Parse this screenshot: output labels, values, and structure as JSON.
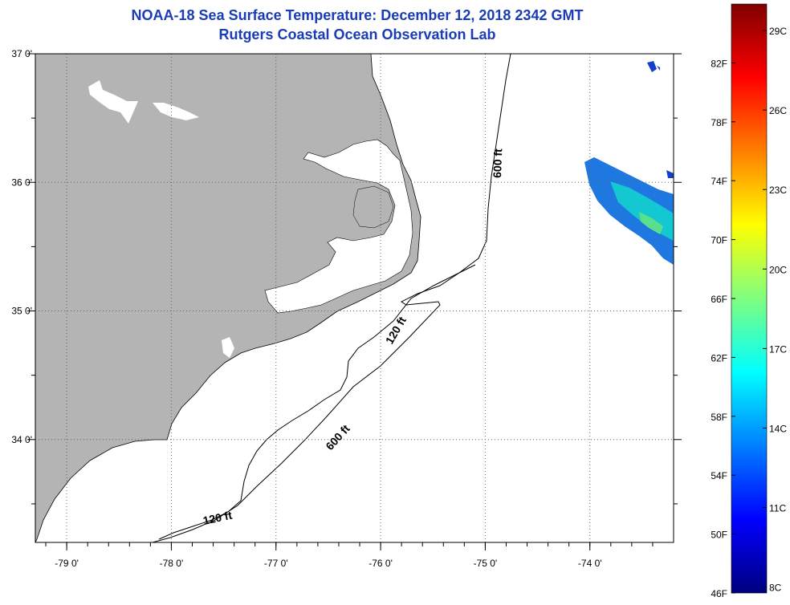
{
  "title": "NOAA-18 Sea Surface Temperature:  December 12, 2018 2342 GMT",
  "subtitle": "Rutgers Coastal Ocean Observation Lab",
  "map": {
    "lon_range": [
      -79.3,
      -73.2
    ],
    "lat_range": [
      33.2,
      37.0
    ],
    "lat_labels": [
      {
        "value": 37.0,
        "text": "37 0'"
      },
      {
        "value": 36.0,
        "text": "36 0'"
      },
      {
        "value": 35.0,
        "text": "35 0'"
      },
      {
        "value": 34.0,
        "text": "34 0'"
      }
    ],
    "lon_labels": [
      {
        "value": -79.0,
        "text": "-79 0'"
      },
      {
        "value": -78.0,
        "text": "-78 0'"
      },
      {
        "value": -77.0,
        "text": "-77 0'"
      },
      {
        "value": -76.0,
        "text": "-76 0'"
      },
      {
        "value": -75.0,
        "text": "-75 0'"
      },
      {
        "value": -74.0,
        "text": "-74 0'"
      }
    ],
    "contour_labels": {
      "label_600_east": "600 ft",
      "label_120_mid": "120 ft",
      "label_600_south": "600 ft",
      "label_120_south": "120 ft"
    },
    "land_color": "#b4b4b4",
    "grid": "dotted"
  },
  "colorbar": {
    "colors": [
      "#00007f",
      "#0000ff",
      "#007fff",
      "#00ffff",
      "#7fff7f",
      "#ffff00",
      "#ff7f00",
      "#ff0000",
      "#7f0000"
    ],
    "fahrenheit": [
      {
        "value": 46,
        "text": "46F"
      },
      {
        "value": 50,
        "text": "50F"
      },
      {
        "value": 54,
        "text": "54F"
      },
      {
        "value": 58,
        "text": "58F"
      },
      {
        "value": 62,
        "text": "62F"
      },
      {
        "value": 66,
        "text": "66F"
      },
      {
        "value": 70,
        "text": "70F"
      },
      {
        "value": 74,
        "text": "74F"
      },
      {
        "value": 78,
        "text": "78F"
      },
      {
        "value": 82,
        "text": "82F"
      }
    ],
    "celsius": [
      {
        "value": 8,
        "text": "8C"
      },
      {
        "value": 11,
        "text": "11C"
      },
      {
        "value": 14,
        "text": "14C"
      },
      {
        "value": 17,
        "text": "17C"
      },
      {
        "value": 20,
        "text": "20C"
      },
      {
        "value": 23,
        "text": "23C"
      },
      {
        "value": 26,
        "text": "26C"
      },
      {
        "value": 29,
        "text": "29C"
      }
    ]
  }
}
